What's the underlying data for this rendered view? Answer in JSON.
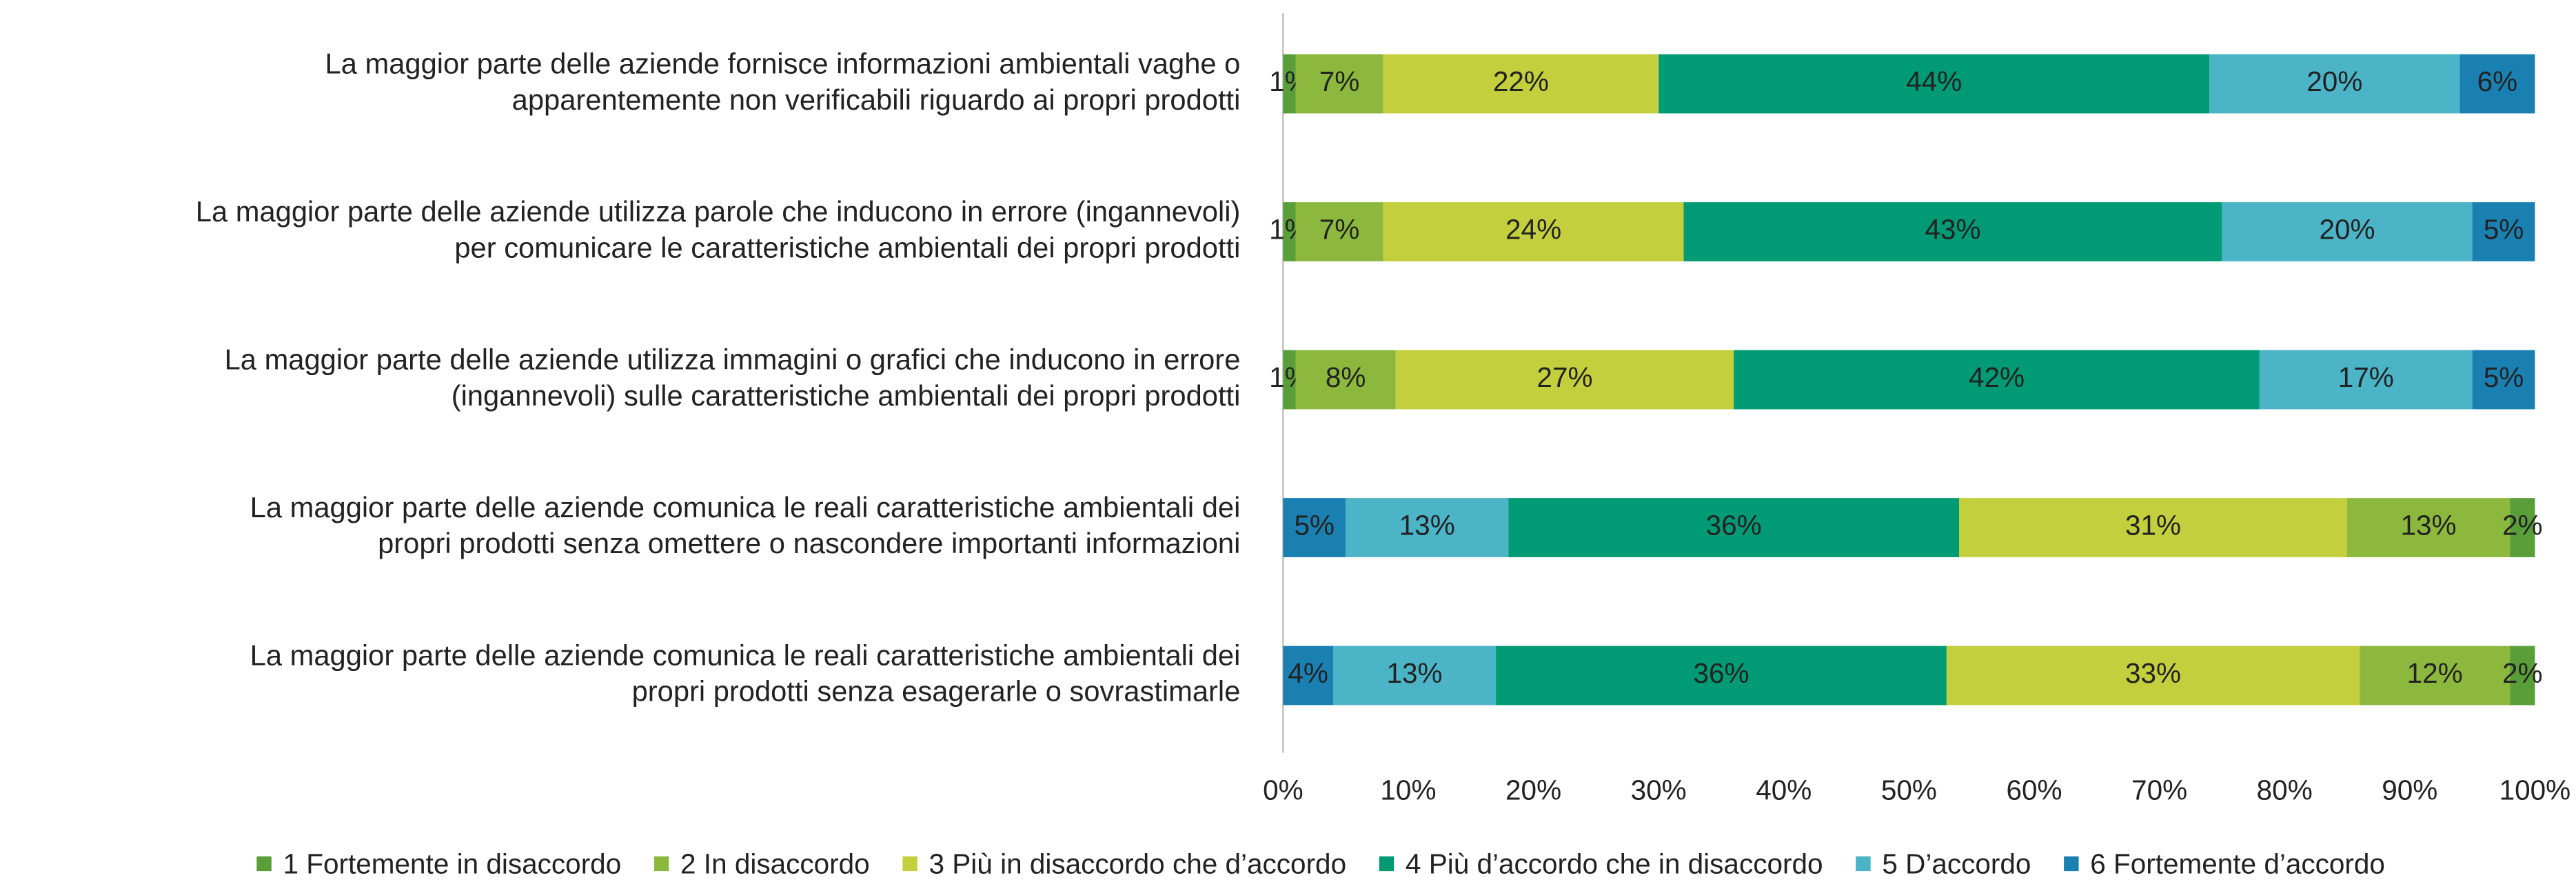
{
  "chart_data": {
    "type": "stacked-bar-horizontal",
    "categories": [
      [
        "La maggior parte delle aziende fornisce informazioni ambientali vaghe o",
        "apparentemente non verificabili riguardo ai propri prodotti"
      ],
      [
        "La maggior parte delle aziende utilizza parole che inducono in errore (ingannevoli)",
        "per comunicare le caratteristiche ambientali dei propri prodotti"
      ],
      [
        "La maggior parte delle aziende utilizza immagini o grafici che inducono in errore",
        "(ingannevoli) sulle caratteristiche ambientali dei propri prodotti"
      ],
      [
        "La maggior parte delle aziende comunica le reali caratteristiche ambientali dei",
        "propri prodotti senza omettere o nascondere importanti informazioni"
      ],
      [
        "La maggior parte delle aziende comunica le reali caratteristiche ambientali dei",
        "propri prodotti senza esagerarle o sovrastimarle"
      ]
    ],
    "reverse_stack": [
      false,
      false,
      false,
      true,
      true
    ],
    "series": [
      {
        "name": "1 Fortemente in disaccordo",
        "color": "#5a9e3a",
        "values": [
          1,
          1,
          1,
          2,
          2
        ],
        "value_labels": [
          "1%",
          "1%",
          "1%",
          "2%",
          "2%"
        ]
      },
      {
        "name": "2 In disaccordo",
        "color": "#8db83e",
        "values": [
          7,
          7,
          8,
          13,
          12
        ],
        "value_labels": [
          "7%",
          "7%",
          "8%",
          "13%",
          "12%"
        ]
      },
      {
        "name": "3 Più in disaccordo che d’accordo",
        "color": "#c3cf3c",
        "values": [
          22,
          24,
          27,
          31,
          33
        ],
        "value_labels": [
          "22%",
          "24%",
          "27%",
          "31%",
          "33%"
        ]
      },
      {
        "name": "4 Più d’accordo che in disaccordo",
        "color": "#009a74",
        "values": [
          44,
          43,
          42,
          36,
          36
        ],
        "value_labels": [
          "44%",
          "43%",
          "42%",
          "36%",
          "36%"
        ]
      },
      {
        "name": "5 D’accordo",
        "color": "#4bb4c6",
        "values": [
          20,
          20,
          17,
          13,
          13
        ],
        "value_labels": [
          "20%",
          "20%",
          "17%",
          "13%",
          "13%"
        ]
      },
      {
        "name": "6 Fortemente d’accordo",
        "color": "#1a80b2",
        "values": [
          6,
          5,
          5,
          5,
          4
        ],
        "value_labels": [
          "6%",
          "5%",
          "5%",
          "5%",
          "4%"
        ]
      }
    ],
    "xlim": [
      0,
      100
    ],
    "xticks": [
      {
        "value": 0,
        "label": "0%"
      },
      {
        "value": 10,
        "label": "10%"
      },
      {
        "value": 20,
        "label": "20%"
      },
      {
        "value": 30,
        "label": "30%"
      },
      {
        "value": 40,
        "label": "40%"
      },
      {
        "value": 50,
        "label": "50%"
      },
      {
        "value": 60,
        "label": "60%"
      },
      {
        "value": 70,
        "label": "70%"
      },
      {
        "value": 80,
        "label": "80%"
      },
      {
        "value": 90,
        "label": "90%"
      },
      {
        "value": 100,
        "label": "100%"
      }
    ],
    "legend": "bottom"
  }
}
